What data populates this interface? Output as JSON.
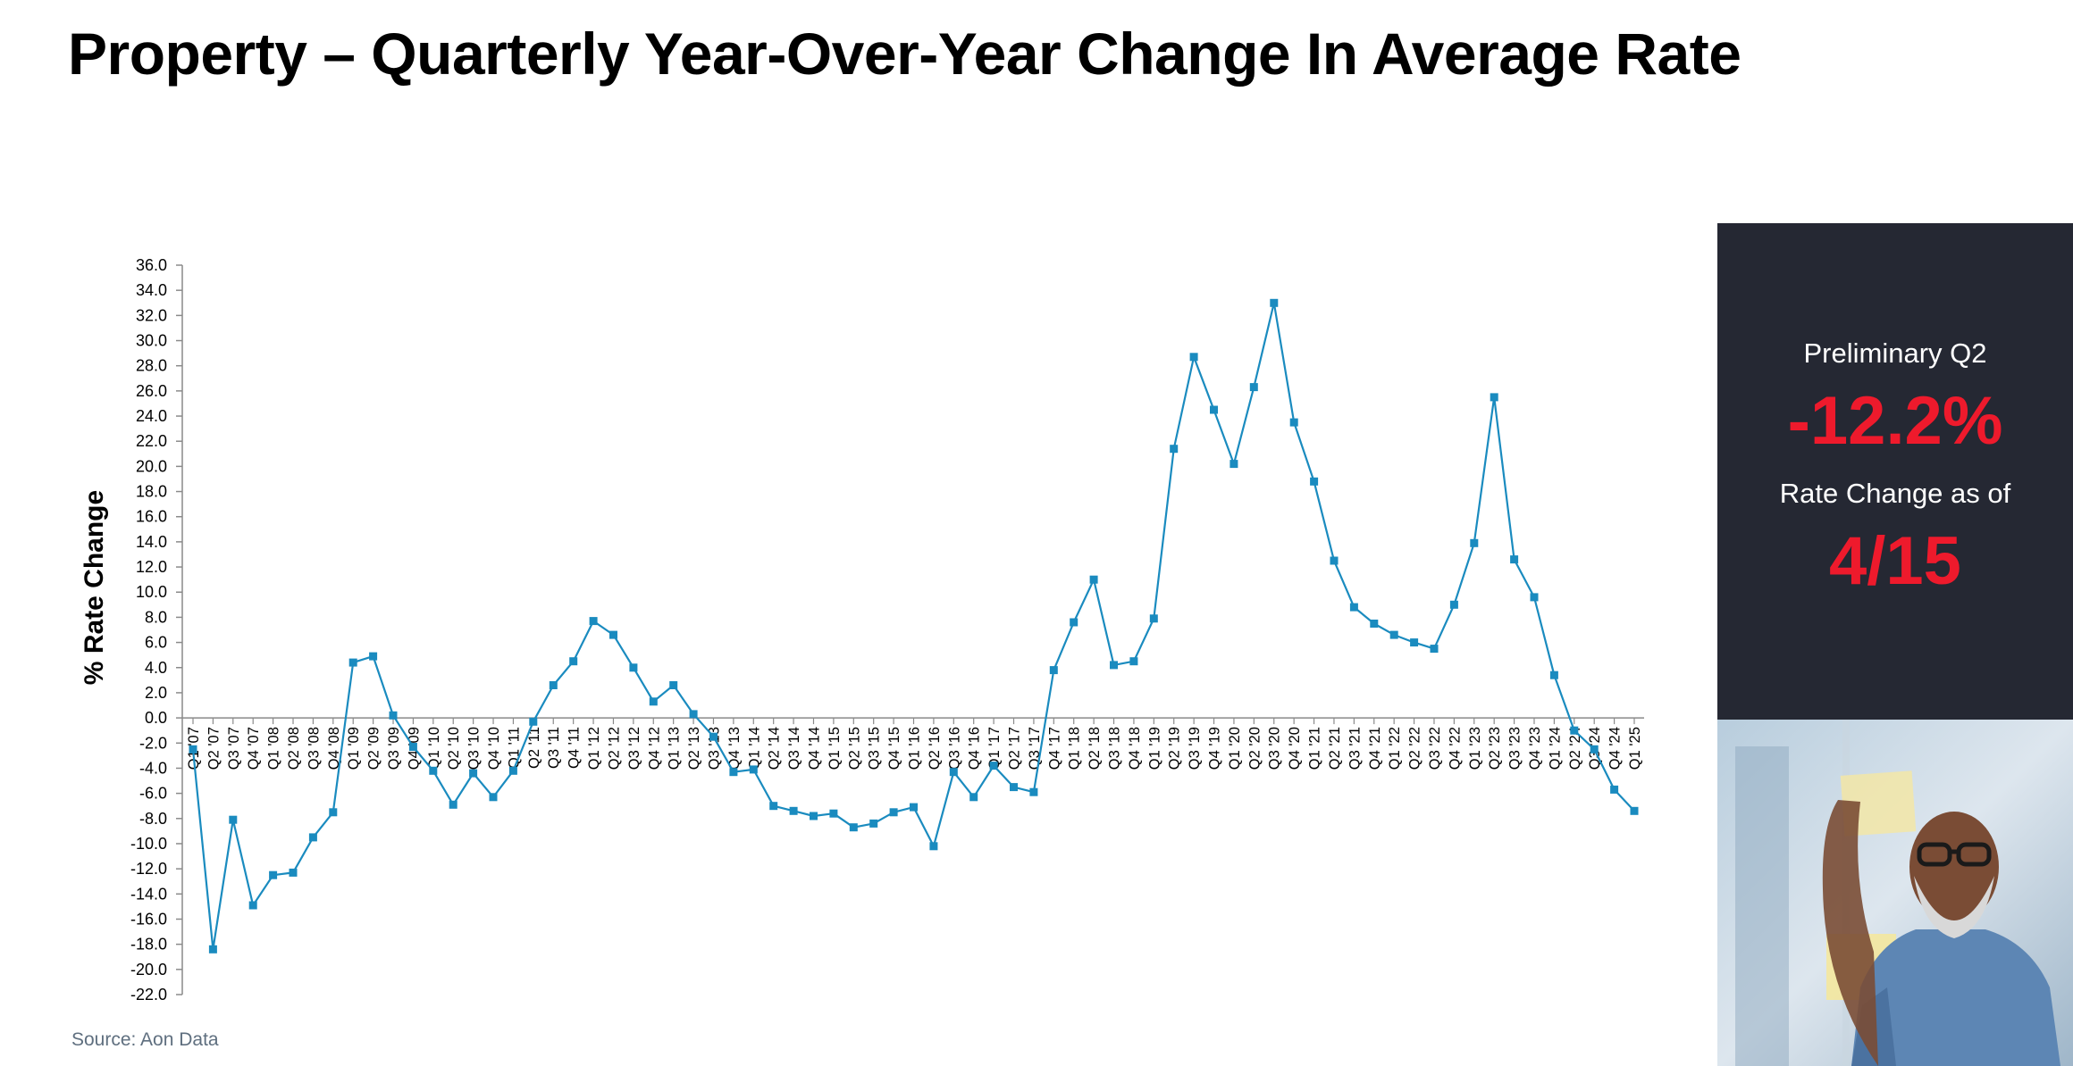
{
  "title": "Property – Quarterly Year-Over-Year Change In Average Rate",
  "source": "Source: Aon Data",
  "callout": {
    "label_top": "Preliminary Q2",
    "value_top": "-12.2%",
    "label_bottom": "Rate Change as of",
    "value_bottom": "4/15"
  },
  "colors": {
    "line": "#1a8bbf",
    "panel_bg": "#252833",
    "accent": "#ee1a2c"
  },
  "photo_icon": "man-at-glass-board-photo",
  "chart_data": {
    "type": "line",
    "title": "",
    "xlabel": "",
    "ylabel": "% Rate Change",
    "ylim": [
      -22,
      36
    ],
    "ytick_step": 2,
    "grid": false,
    "categories": [
      "Q1 '07",
      "Q2 '07",
      "Q3 '07",
      "Q4 '07",
      "Q1 '08",
      "Q2 '08",
      "Q3 '08",
      "Q4 '08",
      "Q1 '09",
      "Q2 '09",
      "Q3 '09",
      "Q4 '09",
      "Q1 '10",
      "Q2 '10",
      "Q3 '10",
      "Q4 '10",
      "Q1 '11",
      "Q2 '11",
      "Q3 '11",
      "Q4 '11",
      "Q1 '12",
      "Q2 '12",
      "Q3 '12",
      "Q4 '12",
      "Q1 '13",
      "Q2 '13",
      "Q3 '13",
      "Q4 '13",
      "Q1 '14",
      "Q2 '14",
      "Q3 '14",
      "Q4 '14",
      "Q1 '15",
      "Q2 '15",
      "Q3 '15",
      "Q4 '15",
      "Q1 '16",
      "Q2 '16",
      "Q3 '16",
      "Q4 '16",
      "Q1 '17",
      "Q2 '17",
      "Q3 '17",
      "Q4 '17",
      "Q1 '18",
      "Q2 '18",
      "Q3 '18",
      "Q4 '18",
      "Q1 '19",
      "Q2 '19",
      "Q3 '19",
      "Q4 '19",
      "Q1 '20",
      "Q2 '20",
      "Q3 '20",
      "Q4 '20",
      "Q1 '21",
      "Q2 '21",
      "Q3 '21",
      "Q4 '21",
      "Q1 '22",
      "Q2 '22",
      "Q3 '22",
      "Q4 '22",
      "Q1 '23",
      "Q2 '23",
      "Q3 '23",
      "Q4 '23",
      "Q1 '24",
      "Q2 '24",
      "Q3 '24",
      "Q4 '24",
      "Q1 '25"
    ],
    "series": [
      {
        "values": [
          -2.5,
          -18.4,
          -8.1,
          -14.9,
          -12.5,
          -12.3,
          -9.5,
          -7.5,
          4.4,
          4.9,
          0.2,
          -2.3,
          -4.2,
          -6.9,
          -4.4,
          -6.3,
          -4.2,
          -0.3,
          2.6,
          4.5,
          7.7,
          6.6,
          4.0,
          1.3,
          2.6,
          0.3,
          -1.5,
          -4.3,
          -4.1,
          -7.0,
          -7.4,
          -7.8,
          -7.6,
          -8.7,
          -8.4,
          -7.5,
          -7.1,
          -10.2,
          -4.3,
          -6.3,
          -3.8,
          -5.5,
          -5.9,
          3.8,
          7.6,
          11.0,
          4.2,
          4.5,
          7.9,
          21.4,
          28.7,
          24.5,
          20.2,
          26.3,
          33.0,
          23.5,
          18.8,
          12.5,
          8.8,
          7.5,
          6.6,
          6.0,
          5.5,
          9.0,
          13.9,
          25.5,
          12.6,
          9.6,
          3.4,
          -1.0,
          -2.5,
          -5.7,
          -7.4
        ]
      }
    ]
  }
}
